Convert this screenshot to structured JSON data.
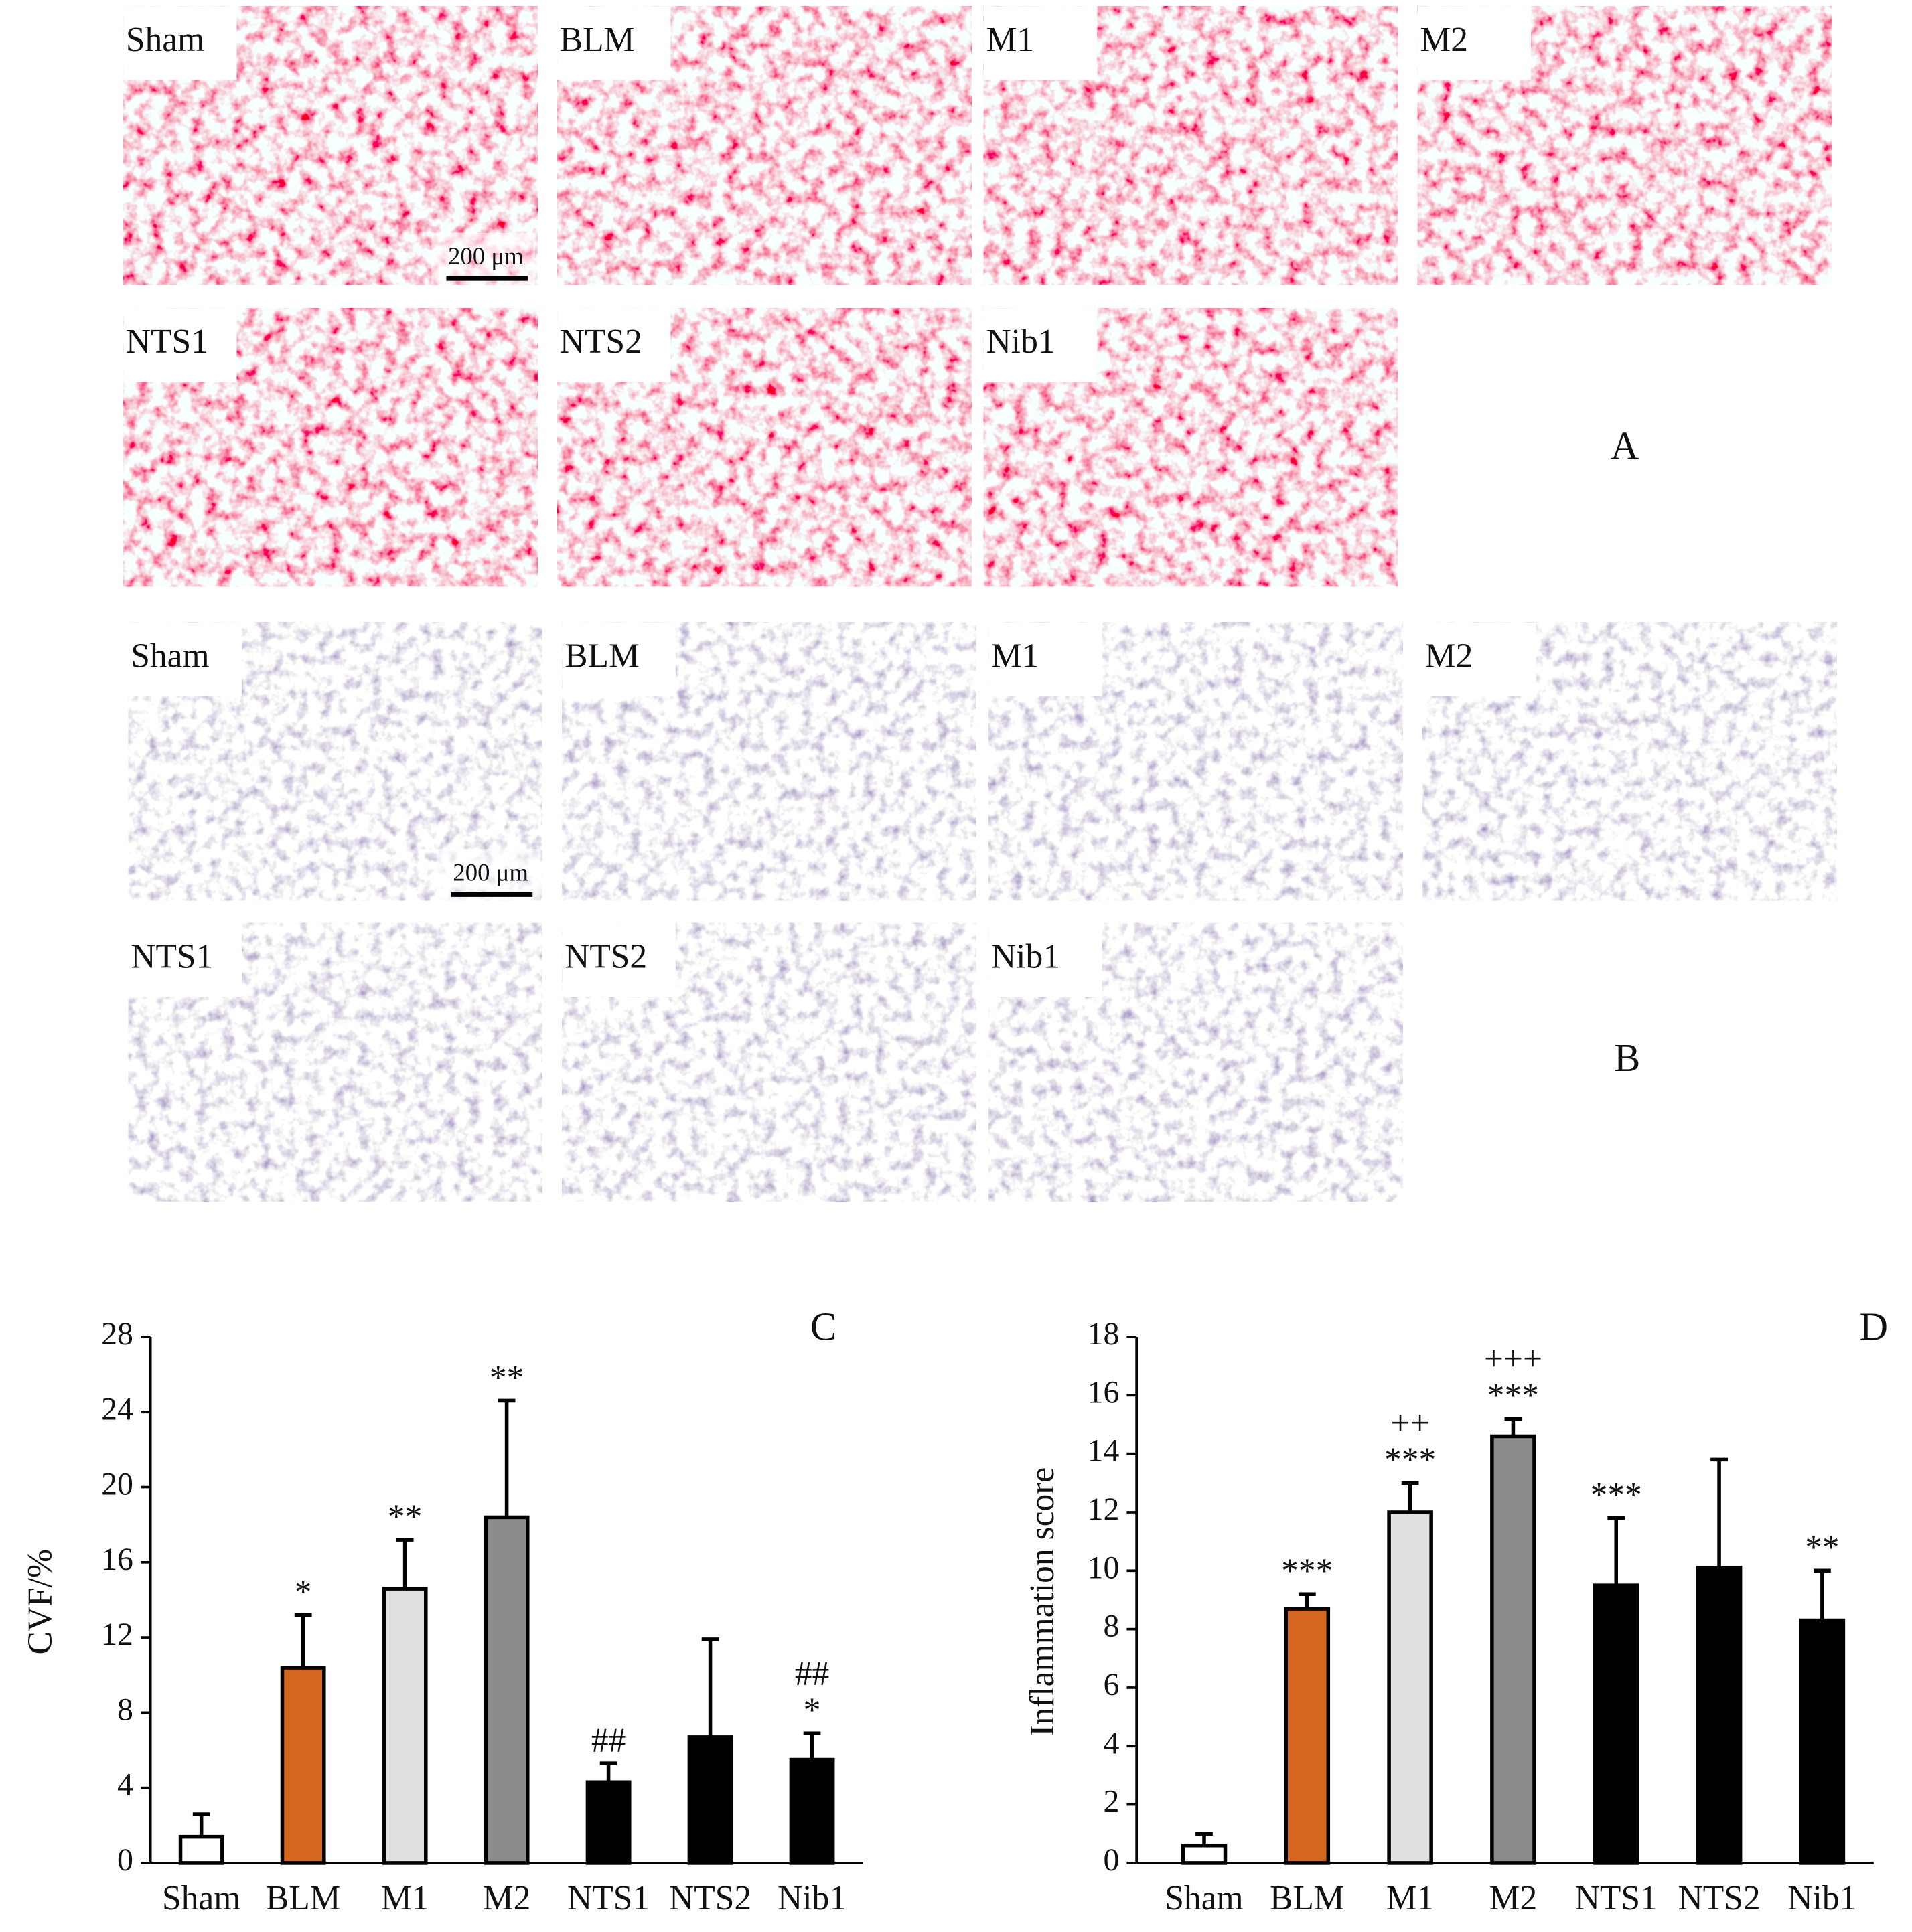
{
  "micrographs": [
    {
      "label": "A",
      "panels": [
        "Sham",
        "BLM",
        "M1",
        "M2",
        "NTS1",
        "NTS2",
        "Nib1"
      ],
      "scale_bar": "200 μm",
      "stain": "he"
    },
    {
      "label": "B",
      "panels": [
        "Sham",
        "BLM",
        "M1",
        "M2",
        "NTS1",
        "NTS2",
        "Nib1"
      ],
      "scale_bar": "200 μm",
      "stain": "masson"
    }
  ],
  "chart_data": [
    {
      "type": "bar",
      "label": "C",
      "y_label": "CVF/%",
      "categories": [
        "Sham",
        "BLM",
        "M1",
        "M2",
        "NTS1",
        "NTS2",
        "Nib1"
      ],
      "values": [
        1.4,
        10.4,
        14.6,
        18.4,
        4.3,
        6.7,
        5.5
      ],
      "errors": [
        1.2,
        2.8,
        2.6,
        6.2,
        1.0,
        5.2,
        1.4
      ],
      "colors": [
        "#ffffff",
        "#d4661f",
        "#e0e0e0",
        "#8c8a8a",
        "#000000",
        "#000000",
        "#000000"
      ],
      "annotations": [
        null,
        [
          "*"
        ],
        [
          "**"
        ],
        [
          "**"
        ],
        [
          "##"
        ],
        null,
        [
          "##",
          "*"
        ]
      ],
      "ylim": [
        0,
        28
      ],
      "yticks": [
        0,
        4,
        8,
        12,
        16,
        20,
        24,
        28
      ]
    },
    {
      "type": "bar",
      "label": "D",
      "y_label": "Inflammation score",
      "categories": [
        "Sham",
        "BLM",
        "M1",
        "M2",
        "NTS1",
        "NTS2",
        "Nib1"
      ],
      "values": [
        0.6,
        8.7,
        12.0,
        14.6,
        9.5,
        10.1,
        8.3
      ],
      "errors": [
        0.4,
        0.5,
        1.0,
        0.6,
        2.3,
        3.7,
        1.7
      ],
      "colors": [
        "#ffffff",
        "#d4661f",
        "#e0e0e0",
        "#8c8a8a",
        "#000000",
        "#000000",
        "#000000"
      ],
      "annotations": [
        null,
        [
          "***"
        ],
        [
          "++",
          "***"
        ],
        [
          "+++",
          "***"
        ],
        [
          "***"
        ],
        null,
        [
          "**"
        ]
      ],
      "ylim": [
        0,
        18
      ],
      "yticks": [
        0,
        2,
        4,
        6,
        8,
        10,
        12,
        14,
        16,
        18
      ]
    }
  ]
}
